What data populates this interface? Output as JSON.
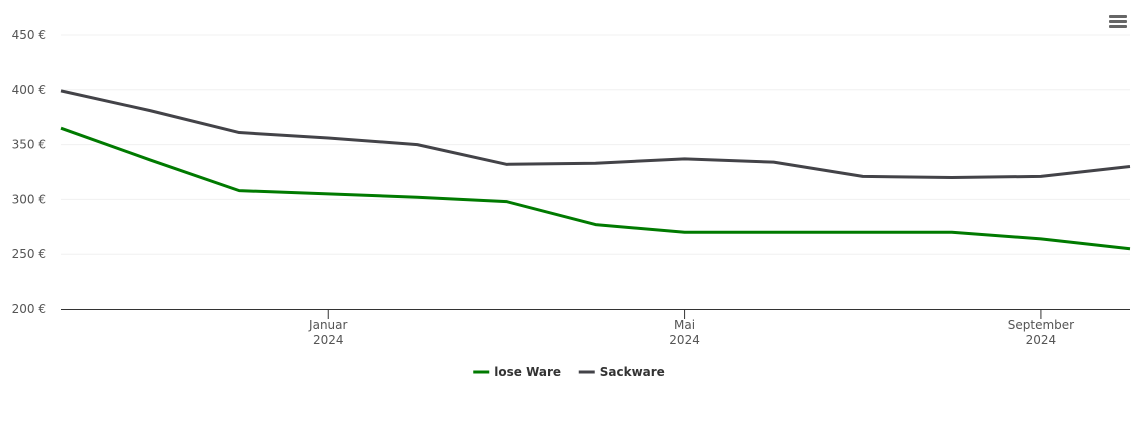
{
  "chart_data": {
    "type": "line",
    "x": [
      "2023-10",
      "2023-11",
      "2023-12",
      "2024-01",
      "2024-02",
      "2024-03",
      "2024-04",
      "2024-05",
      "2024-06",
      "2024-07",
      "2024-08",
      "2024-09",
      "2024-10"
    ],
    "xlim": [
      "2023-10",
      "2024-10"
    ],
    "xticks": [
      {
        "value": "2024-01",
        "label": [
          "Januar",
          "2024"
        ]
      },
      {
        "value": "2024-05",
        "label": [
          "Mai",
          "2024"
        ]
      },
      {
        "value": "2024-09",
        "label": [
          "September",
          "2024"
        ]
      }
    ],
    "ylim": [
      200,
      450
    ],
    "yticks": [
      {
        "value": 200,
        "label": "200 €"
      },
      {
        "value": 250,
        "label": "250 €"
      },
      {
        "value": 300,
        "label": "300 €"
      },
      {
        "value": 350,
        "label": "350 €"
      },
      {
        "value": 400,
        "label": "400 €"
      },
      {
        "value": 450,
        "label": "450 €"
      }
    ],
    "grid": true,
    "legend": "bottom",
    "series": [
      {
        "name": "lose Ware",
        "color": "#007a00",
        "values": [
          365,
          336,
          308,
          305,
          302,
          298,
          277,
          270,
          270,
          270,
          270,
          264,
          255
        ]
      },
      {
        "name": "Sackware",
        "color": "#434348",
        "values": [
          399,
          381,
          361,
          356,
          350,
          332,
          333,
          337,
          334,
          321,
          320,
          321,
          330
        ]
      }
    ]
  }
}
